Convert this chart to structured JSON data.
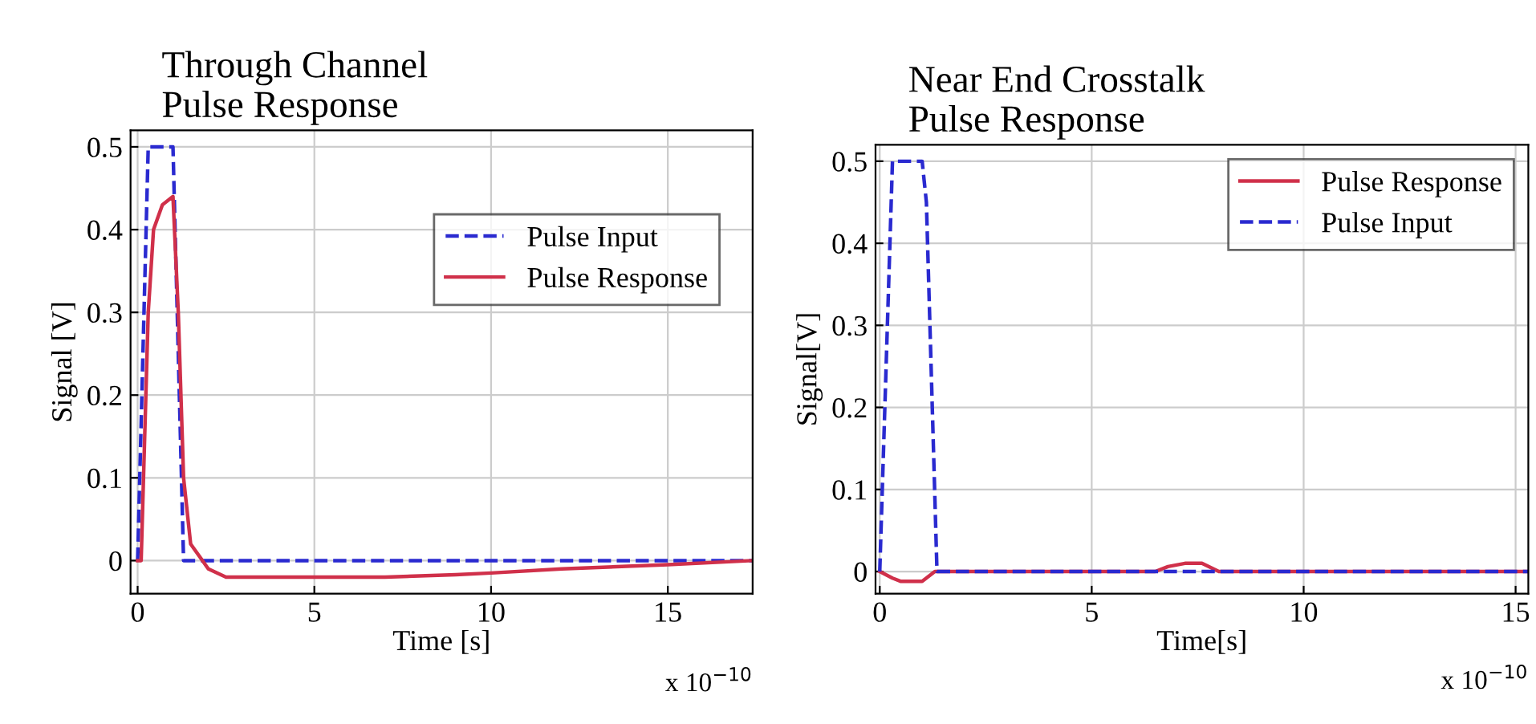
{
  "chart_data": [
    {
      "type": "line",
      "title": "Through Channel\nPulse Response",
      "xlabel": "Time [s]",
      "ylabel": "Signal [V]",
      "annotations": [
        "x 10$^{−10}$"
      ],
      "xlim": [
        -0.2,
        17.4
      ],
      "ylim": [
        -0.04,
        0.52
      ],
      "xticks": [
        0,
        5,
        10,
        15
      ],
      "yticks": [
        0,
        0.1,
        0.2,
        0.3,
        0.4,
        0.5
      ],
      "grid": true,
      "legend": "top right",
      "series": [
        {
          "name": "Pulse Input",
          "color": "#2a2ad0",
          "line_style": "dashed",
          "x": [
            0,
            0.3,
            1.0,
            1.3,
            17.4
          ],
          "values": [
            0,
            0.5,
            0.5,
            0,
            0
          ]
        },
        {
          "name": "Pulse Response",
          "color": "#d0304a",
          "line_style": "solid",
          "x": [
            0,
            0.1,
            0.3,
            0.45,
            0.7,
            1.0,
            1.15,
            1.3,
            1.5,
            2.0,
            2.5,
            4,
            7,
            9,
            10,
            12,
            15,
            17.4
          ],
          "values": [
            0,
            0,
            0.3,
            0.4,
            0.43,
            0.44,
            0.3,
            0.1,
            0.02,
            -0.01,
            -0.02,
            -0.02,
            -0.02,
            -0.017,
            -0.015,
            -0.01,
            -0.005,
            0
          ]
        }
      ]
    },
    {
      "type": "line",
      "title": "Near End Crosstalk\nPulse Response",
      "xlabel": "Time[s]",
      "ylabel": "Signal[V]",
      "annotations": [
        "x 10$^{−10}$"
      ],
      "xlim": [
        -0.1,
        15.3
      ],
      "ylim": [
        -0.027,
        0.52
      ],
      "xticks": [
        0,
        5,
        10,
        15
      ],
      "yticks": [
        0,
        0.1,
        0.2,
        0.3,
        0.4,
        0.5
      ],
      "grid": true,
      "legend": "top right",
      "series": [
        {
          "name": "Pulse Response",
          "color": "#d0304a",
          "line_style": "solid",
          "x": [
            0,
            0.3,
            0.5,
            1.0,
            1.3,
            6.5,
            6.8,
            7.2,
            7.6,
            8.0,
            15.3
          ],
          "values": [
            0,
            -0.008,
            -0.012,
            -0.012,
            0,
            0,
            0.006,
            0.01,
            0.01,
            0,
            0
          ]
        },
        {
          "name": "Pulse Input",
          "color": "#2a2ad0",
          "line_style": "dashed",
          "x": [
            0,
            0.3,
            1.0,
            1.1,
            1.35,
            15.3
          ],
          "values": [
            0,
            0.5,
            0.5,
            0.45,
            0,
            0
          ]
        }
      ]
    }
  ]
}
